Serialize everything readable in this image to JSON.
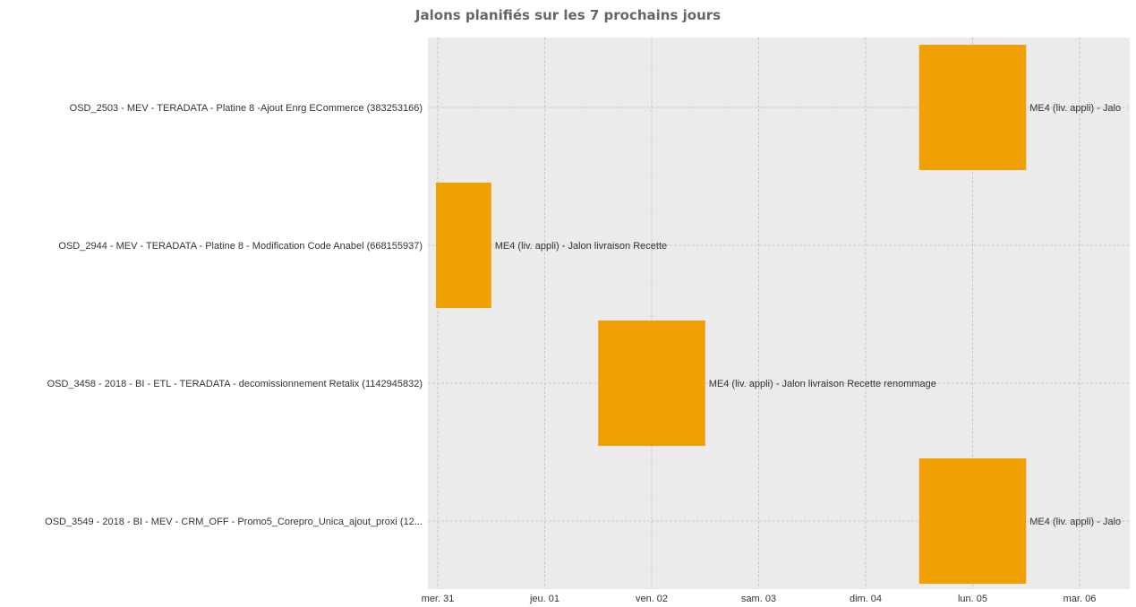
{
  "chart_data": {
    "type": "bar",
    "title": "Jalons planifiés sur les 7 prochains jours",
    "xlabel": "",
    "ylabel": "",
    "grid": true,
    "x_ticks": [
      "mer. 31",
      "jeu. 01",
      "ven. 02",
      "sam. 03",
      "dim. 04",
      "lun. 05",
      "mar. 06"
    ],
    "x_range_days": [
      0,
      6.5
    ],
    "categories": [
      "OSD_2503 - MEV - TERADATA - Platine 8 -Ajout Enrg ECommerce (383253166)",
      "OSD_2944 - MEV - TERADATA - Platine 8 - Modification Code Anabel (668155937)",
      "OSD_3458 - 2018 - BI - ETL - TERADATA - decomissionnement Retalix (1142945832)",
      "OSD_3549 - 2018 - BI - MEV - CRM_OFF - Promo5_Corepro_Unica_ajout_proxi (12..."
    ],
    "bars": [
      {
        "category_index": 0,
        "start": "lun. 05",
        "label": "ME4 (liv. appli) - Jalo"
      },
      {
        "category_index": 1,
        "start": "mer. 31",
        "label": "ME4 (liv. appli) - Jalon livraison Recette"
      },
      {
        "category_index": 2,
        "start": "ven. 02",
        "label": "ME4 (liv. appli) - Jalon livraison Recette renommage"
      },
      {
        "category_index": 3,
        "start": "lun. 05",
        "label": "ME4 (liv. appli) - Jalo"
      }
    ],
    "bar_color": "#f0a000",
    "plot_background": "#ebebeb",
    "grid_color": "#c8c8c8"
  }
}
